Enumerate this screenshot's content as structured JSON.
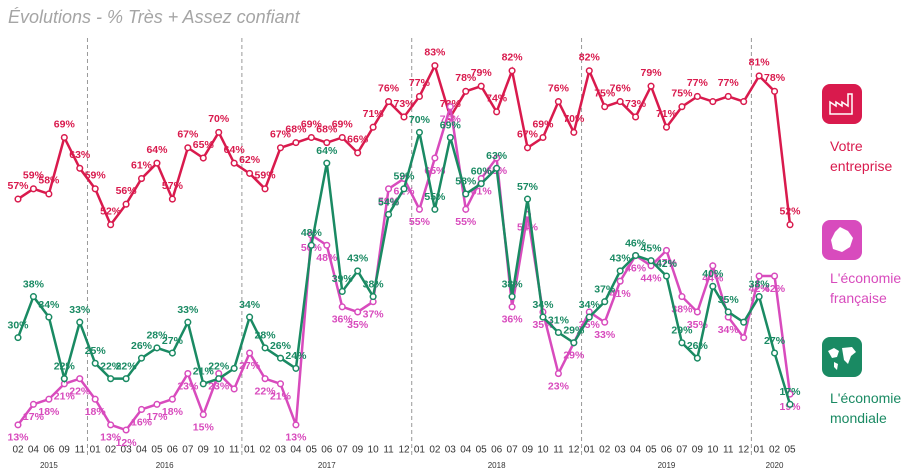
{
  "chart_data": {
    "type": "line",
    "title": "Évolutions - % Très + Assez confiant",
    "categories": [
      "02",
      "04",
      "06",
      "09",
      "11",
      "01",
      "02",
      "03",
      "04",
      "05",
      "06",
      "07",
      "09",
      "10",
      "11",
      "01",
      "02",
      "03",
      "04",
      "05",
      "06",
      "07",
      "09",
      "10",
      "11",
      "12",
      "01",
      "02",
      "03",
      "04",
      "05",
      "06",
      "07",
      "09",
      "10",
      "11",
      "12",
      "01",
      "02",
      "03",
      "04",
      "05",
      "06",
      "07",
      "09",
      "10",
      "11",
      "12",
      "01",
      "02",
      "05"
    ],
    "x_groups": [
      {
        "label": "2015",
        "count": 5
      },
      {
        "label": "2016",
        "count": 10
      },
      {
        "label": "2017",
        "count": 11
      },
      {
        "label": "2018",
        "count": 11
      },
      {
        "label": "2019",
        "count": 11
      },
      {
        "label": "2020",
        "count": 3
      }
    ],
    "ylim": [
      12,
      88
    ],
    "series": [
      {
        "name": "Votre entreprise",
        "color": "#d91a4d",
        "values": [
          57,
          59,
          58,
          69,
          63,
          59,
          52,
          56,
          61,
          64,
          57,
          67,
          65,
          70,
          64,
          62,
          59,
          67,
          68,
          69,
          68,
          69,
          66,
          71,
          76,
          73,
          77,
          83,
          73,
          78,
          79,
          74,
          82,
          67,
          69,
          76,
          70,
          82,
          75,
          76,
          73,
          79,
          71,
          75,
          77,
          76,
          77,
          76,
          81,
          78,
          52
        ],
        "value_labels": [
          "57%",
          "59%",
          "58%",
          "69%",
          "63%",
          "59%",
          "52%",
          "56%",
          "61%",
          "64%",
          "57%",
          "67%",
          "65%",
          "70%",
          "64%",
          "62%",
          "59%",
          "67%",
          "68%",
          "69%",
          "68%",
          "69%",
          "66%",
          "71%",
          "76%",
          "73%",
          "77%",
          "83%",
          "73%",
          "78%",
          "79%",
          "74%",
          "82%",
          "67%",
          "69%",
          "76%",
          "70%",
          "82%",
          "75%",
          "76%",
          "73%",
          "79%",
          "71%",
          "75%",
          "77%",
          null,
          "77%",
          null,
          "81%",
          "78%",
          "52%"
        ]
      },
      {
        "name": "L'économie française",
        "color": "#d84bbd",
        "values": [
          13,
          17,
          18,
          21,
          22,
          18,
          13,
          12,
          16,
          17,
          18,
          23,
          15,
          23,
          20,
          27,
          22,
          21,
          13,
          50,
          48,
          36,
          35,
          37,
          59,
          61,
          55,
          65,
          75,
          55,
          61,
          65,
          36,
          54,
          35,
          23,
          29,
          35,
          33,
          41,
          46,
          44,
          47,
          38,
          35,
          44,
          34,
          30,
          42,
          42,
          19
        ],
        "value_labels": [
          "13%",
          "17%",
          "18%",
          "21%",
          "22%",
          "18%",
          "13%",
          "12%",
          "16%",
          "17%",
          "18%",
          "23%",
          "15%",
          "23%",
          null,
          "27%",
          "22%",
          "21%",
          "13%",
          "50%",
          "48%",
          "36%",
          "35%",
          "37%",
          "59%",
          "61%",
          "55%",
          "65%",
          "75%",
          "55%",
          "61%",
          "65%",
          "36%",
          "54%",
          "35%",
          "23%",
          "29%",
          "35%",
          "33%",
          "41%",
          "46%",
          "44%",
          "47%",
          "38%",
          "35%",
          "44%",
          "34%",
          null,
          "42%",
          "42%",
          "19%"
        ]
      },
      {
        "name": "L'économie mondiale",
        "color": "#1a8a63",
        "values": [
          30,
          38,
          34,
          22,
          33,
          25,
          22,
          22,
          26,
          28,
          27,
          33,
          21,
          22,
          24,
          34,
          28,
          26,
          24,
          48,
          64,
          39,
          43,
          38,
          54,
          59,
          70,
          55,
          69,
          58,
          60,
          63,
          38,
          57,
          34,
          31,
          29,
          34,
          37,
          43,
          46,
          45,
          42,
          29,
          26,
          40,
          35,
          33,
          38,
          27,
          17
        ],
        "value_labels": [
          "30%",
          "38%",
          "34%",
          "22%",
          "33%",
          "25%",
          "22%",
          "22%",
          "26%",
          "28%",
          "27%",
          "33%",
          "21%",
          "22%",
          null,
          "34%",
          "28%",
          "26%",
          "24%",
          "48%",
          "64%",
          "39%",
          "43%",
          "38%",
          "54%",
          "59%",
          "70%",
          "55%",
          "69%",
          "58%",
          "60%",
          "63%",
          "38%",
          "57%",
          "34%",
          "31%",
          "29%",
          "34%",
          "37%",
          "43%",
          "46%",
          "45%",
          "42%",
          "29%",
          "26%",
          "40%",
          "35%",
          null,
          "38%",
          "27%",
          "17%"
        ]
      }
    ]
  }
}
